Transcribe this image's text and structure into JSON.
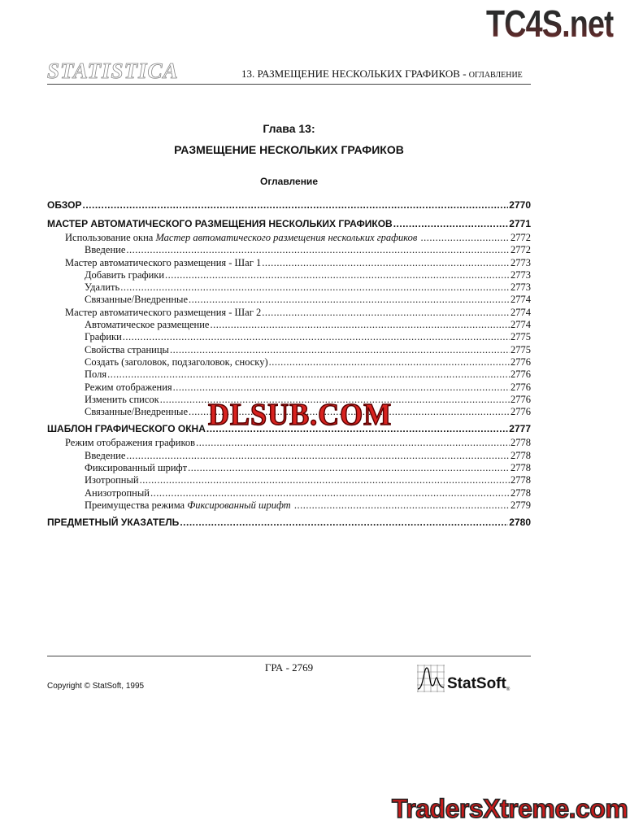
{
  "watermarks": {
    "top": "TC4S.net",
    "middle": "DLSUB.COM",
    "bottom": "TradersXtreme.com"
  },
  "header": {
    "logo": "STATISTICA",
    "running_title": "13.  РАЗМЕЩЕНИЕ НЕСКОЛЬКИХ ГРАФИКОВ - ",
    "running_subtitle": "ОГЛАВЛЕНИЕ"
  },
  "chapter": {
    "number": "Глава 13:",
    "title": "РАЗМЕЩЕНИЕ НЕСКОЛЬКИХ ГРАФИКОВ",
    "toc_heading": "Оглавление"
  },
  "toc": [
    {
      "level": 0,
      "segments": [
        {
          "text": "ОБЗОР"
        }
      ],
      "page": "2770"
    },
    {
      "level": 0,
      "segments": [
        {
          "text": "МАСТЕР АВТОМАТИЧЕСКОГО РАЗМЕЩЕНИЯ НЕСКОЛЬКИХ ГРАФИКОВ"
        }
      ],
      "page": "2771"
    },
    {
      "level": 1,
      "segments": [
        {
          "text": "Использование окна "
        },
        {
          "text": "Мастер автоматического размещения нескольких графиков",
          "italic": true
        },
        {
          "text": " "
        }
      ],
      "page": "2772"
    },
    {
      "level": 2,
      "segments": [
        {
          "text": "Введение"
        }
      ],
      "page": "2772"
    },
    {
      "level": 1,
      "segments": [
        {
          "text": "Мастер автоматического размещения - Шаг 1"
        }
      ],
      "page": "2773"
    },
    {
      "level": 2,
      "segments": [
        {
          "text": "Добавить графики"
        }
      ],
      "page": "2773"
    },
    {
      "level": 2,
      "segments": [
        {
          "text": "Удалить"
        }
      ],
      "page": "2773"
    },
    {
      "level": 2,
      "segments": [
        {
          "text": "Связанные/Внедренные"
        }
      ],
      "page": "2774"
    },
    {
      "level": 1,
      "segments": [
        {
          "text": "Мастер автоматического размещения - Шаг 2"
        }
      ],
      "page": "2774"
    },
    {
      "level": 2,
      "segments": [
        {
          "text": "Автоматическое размещение"
        }
      ],
      "page": "2774"
    },
    {
      "level": 2,
      "segments": [
        {
          "text": "Графики"
        }
      ],
      "page": "2775"
    },
    {
      "level": 2,
      "segments": [
        {
          "text": "Свойства страницы"
        }
      ],
      "page": "2775"
    },
    {
      "level": 2,
      "segments": [
        {
          "text": "Создать (заголовок, подзаголовок, сноску)"
        }
      ],
      "page": "2776"
    },
    {
      "level": 2,
      "segments": [
        {
          "text": "Поля"
        }
      ],
      "page": "2776"
    },
    {
      "level": 2,
      "segments": [
        {
          "text": "Режим отображения"
        }
      ],
      "page": "2776"
    },
    {
      "level": 2,
      "segments": [
        {
          "text": "Изменить список"
        }
      ],
      "page": "2776"
    },
    {
      "level": 2,
      "segments": [
        {
          "text": "Связанные/Внедренные"
        }
      ],
      "page": "2776"
    },
    {
      "level": 0,
      "segments": [
        {
          "text": "ШАБЛОН ГРАФИЧЕСКОГО ОКНА"
        }
      ],
      "page": "2777"
    },
    {
      "level": 1,
      "segments": [
        {
          "text": "Режим отображения графиков"
        }
      ],
      "page": "2778"
    },
    {
      "level": 2,
      "segments": [
        {
          "text": "Введение"
        }
      ],
      "page": "2778"
    },
    {
      "level": 2,
      "segments": [
        {
          "text": "Фиксированный шрифт"
        }
      ],
      "page": "2778"
    },
    {
      "level": 2,
      "segments": [
        {
          "text": "Изотропный"
        }
      ],
      "page": "2778"
    },
    {
      "level": 2,
      "segments": [
        {
          "text": "Анизотропный"
        }
      ],
      "page": "2778"
    },
    {
      "level": 2,
      "segments": [
        {
          "text": "Преимущества режима "
        },
        {
          "text": "Фиксированный шрифт",
          "italic": true
        },
        {
          "text": " "
        }
      ],
      "page": "2779"
    },
    {
      "level": 0,
      "segments": [
        {
          "text": "ПРЕДМЕТНЫЙ УКАЗАТЕЛЬ"
        }
      ],
      "page": "2780"
    }
  ],
  "footer": {
    "page_number": "ГРА - 2769",
    "copyright": "Copyright © StatSoft, 1995",
    "brand": "StatSoft",
    "registered": "®"
  }
}
